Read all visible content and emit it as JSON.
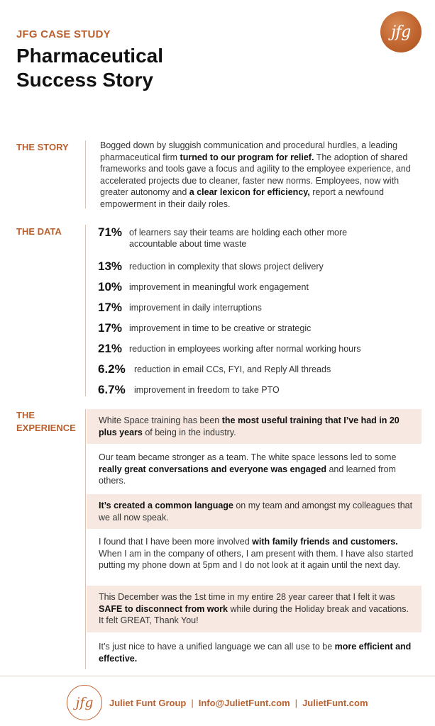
{
  "header": {
    "kicker": "JFG CASE STUDY",
    "title_line1": "Pharmaceutical",
    "title_line2": "Success Story",
    "logo_text": "jfg"
  },
  "story": {
    "label": "THE STORY",
    "segments": [
      {
        "text": "Bogged down by sluggish communication and procedural hurdles, a leading pharmaceutical firm ",
        "bold": false
      },
      {
        "text": "turned to our program for relief.",
        "bold": true
      },
      {
        "text": " The adoption of shared frameworks and tools gave a focus and agility to the employee experience, and accelerated projects due to cleaner, faster new norms. Employees, now with greater autonomy and ",
        "bold": false
      },
      {
        "text": "a clear lexicon for efficiency,",
        "bold": true
      },
      {
        "text": " report a newfound empowerment in their daily roles.",
        "bold": false
      }
    ]
  },
  "data": {
    "label": "THE DATA",
    "stats": [
      {
        "value": "71%",
        "text": "of learners say their teams are holding each other more accountable about time waste"
      },
      {
        "value": "13%",
        "text": "reduction in complexity that slows project delivery"
      },
      {
        "value": "10%",
        "text": "improvement in meaningful work engagement"
      },
      {
        "value": "17%",
        "text": "improvement in daily interruptions"
      },
      {
        "value": "17%",
        "text": "improvement in time to be creative or strategic"
      },
      {
        "value": "21%",
        "text": "reduction in employees working after normal working hours"
      },
      {
        "value": "6.2%",
        "text": "reduction in email CCs, FYI, and Reply All threads"
      },
      {
        "value": "6.7%",
        "text": "improvement in freedom to take PTO"
      }
    ]
  },
  "experience": {
    "label_line1": "THE",
    "label_line2": "EXPERIENCE",
    "quotes": [
      {
        "shaded": true,
        "segments": [
          {
            "text": "White Space training has been ",
            "bold": false
          },
          {
            "text": "the most useful training that I’ve had in 20 plus years",
            "bold": true
          },
          {
            "text": " of being in the industry.",
            "bold": false
          }
        ]
      },
      {
        "shaded": false,
        "segments": [
          {
            "text": "Our team became stronger as a team. The white space lessons led to some ",
            "bold": false
          },
          {
            "text": "really great conversations and everyone was engaged",
            "bold": true
          },
          {
            "text": " and learned from others.",
            "bold": false
          }
        ]
      },
      {
        "shaded": true,
        "segments": [
          {
            "text": "It’s created a common language",
            "bold": true
          },
          {
            "text": " on my team and amongst my colleagues that we all now speak.",
            "bold": false
          }
        ]
      },
      {
        "shaded": false,
        "segments": [
          {
            "text": "I found that I have been more involved ",
            "bold": false
          },
          {
            "text": "with family friends and customers.",
            "bold": true
          },
          {
            "text": " When I am in the company of others, I am present with them. I have also started putting my phone down at 5pm and I do not look at it again until the next day.",
            "bold": false
          }
        ]
      },
      {
        "shaded": true,
        "segments": [
          {
            "text": "This December was the 1st time in my entire 28 year career that I felt it was ",
            "bold": false
          },
          {
            "text": "SAFE to disconnect from work",
            "bold": true
          },
          {
            "text": " while during the Holiday break and vacations. It felt GREAT, Thank You!",
            "bold": false
          }
        ]
      },
      {
        "shaded": false,
        "segments": [
          {
            "text": "It’s just nice to have a unified language we can all use to be ",
            "bold": false
          },
          {
            "text": "more efficient and effective.",
            "bold": true
          }
        ]
      }
    ]
  },
  "footer": {
    "logo_text": "jfg",
    "company": "Juliet Funt Group",
    "email": "Info@JulietFunt.com",
    "website": "JulietFunt.com",
    "separator": "|"
  },
  "colors": {
    "accent": "#b9602e",
    "quote_shade": "#f7e9e1"
  }
}
